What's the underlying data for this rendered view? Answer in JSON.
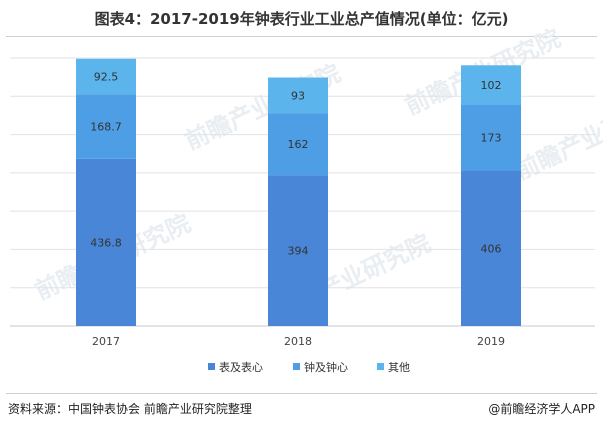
{
  "header": {
    "title": "图表4：2017-2019年钟表行业工业总产值情况(单位：亿元)"
  },
  "footer": {
    "source": "资料来源：中国钟表协会 前瞻产业研究院整理",
    "brand": "@前瞻经济学人APP"
  },
  "watermark": {
    "text": "前瞻产业研究院"
  },
  "chart_data": {
    "type": "bar",
    "stacked": true,
    "title": "图表4：2017-2019年钟表行业工业总产值情况(单位：亿元)",
    "categories": [
      "2017",
      "2018",
      "2019"
    ],
    "series": [
      {
        "name": "表及表心",
        "values": [
          436.8,
          394,
          406
        ],
        "labels": [
          "436.8",
          "394",
          "406"
        ],
        "color": "#4a86d8"
      },
      {
        "name": "钟及钟心",
        "values": [
          168.7,
          162,
          173
        ],
        "labels": [
          "168.7",
          "162",
          "173"
        ],
        "color": "#4e9ee6"
      },
      {
        "name": "其他",
        "values": [
          92.5,
          93,
          102
        ],
        "labels": [
          "92.5",
          "93",
          "102"
        ],
        "color": "#5bb4ec"
      }
    ],
    "ylim": [
      0,
      700
    ],
    "grid": true,
    "legend_position": "bottom"
  }
}
